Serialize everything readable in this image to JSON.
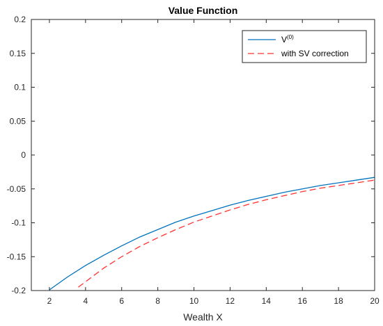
{
  "chart_data": {
    "type": "line",
    "title": "Value Function",
    "xlabel": "Wealth X",
    "ylabel": "",
    "xlim": [
      1,
      20
    ],
    "ylim": [
      -0.2,
      0.2
    ],
    "xticks": [
      2,
      4,
      6,
      8,
      10,
      12,
      14,
      16,
      18,
      20
    ],
    "xtick_labels": [
      "2",
      "4",
      "6",
      "8",
      "10",
      "12",
      "14",
      "16",
      "18",
      "20"
    ],
    "yticks": [
      -0.2,
      -0.15,
      -0.1,
      -0.05,
      0,
      0.05,
      0.1,
      0.15,
      0.2
    ],
    "ytick_labels": [
      "-0.2",
      "-0.15",
      "-0.1",
      "-0.05",
      "0",
      "0.05",
      "0.1",
      "0.15",
      "0.2"
    ],
    "grid": false,
    "legend_position": "top-right",
    "series": [
      {
        "name": "V(0)",
        "legend_base": "V",
        "legend_sup": "(0)",
        "color": "#0072BD",
        "style": "solid",
        "x": [
          2,
          3,
          4,
          5,
          6,
          7,
          8,
          9,
          10,
          11,
          12,
          13,
          14,
          15,
          16,
          17,
          18,
          19,
          20
        ],
        "y": [
          -0.199,
          -0.18,
          -0.163,
          -0.148,
          -0.134,
          -0.121,
          -0.11,
          -0.099,
          -0.09,
          -0.082,
          -0.074,
          -0.067,
          -0.061,
          -0.055,
          -0.05,
          -0.045,
          -0.041,
          -0.037,
          -0.033
        ]
      },
      {
        "name": "with SV correction",
        "color": "#FF3333",
        "style": "dashed",
        "x": [
          3.6,
          4,
          5,
          6,
          7,
          8,
          9,
          10,
          11,
          12,
          13,
          14,
          15,
          16,
          17,
          18,
          19,
          20
        ],
        "y": [
          -0.195,
          -0.187,
          -0.167,
          -0.15,
          -0.135,
          -0.122,
          -0.11,
          -0.099,
          -0.09,
          -0.081,
          -0.073,
          -0.066,
          -0.06,
          -0.054,
          -0.049,
          -0.045,
          -0.041,
          -0.037
        ]
      }
    ]
  }
}
